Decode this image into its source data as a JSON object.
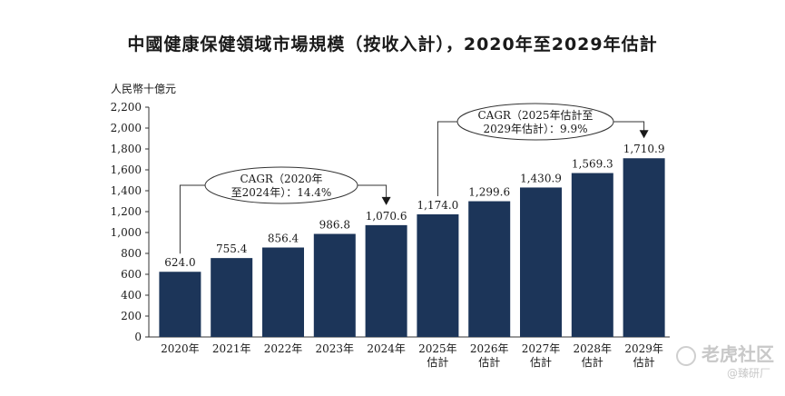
{
  "title": "中國健康保健領域市場規模（按收入計），2020年至2029年估計",
  "chart_data": {
    "type": "bar",
    "title": "中國健康保健領域市場規模（按收入計），2020年至2029年估計",
    "ylabel": "人民幣十億元",
    "xlabel": "",
    "ylim": [
      0,
      2200
    ],
    "yticks": [
      0,
      200,
      400,
      600,
      800,
      1000,
      1200,
      1400,
      1600,
      1800,
      2000,
      2200
    ],
    "ytick_labels": [
      "0",
      "200",
      "400",
      "600",
      "800",
      "1,000",
      "1,200",
      "1,400",
      "1,600",
      "1,800",
      "2,000",
      "2,200"
    ],
    "categories": [
      [
        "2020年"
      ],
      [
        "2021年"
      ],
      [
        "2022年"
      ],
      [
        "2023年"
      ],
      [
        "2024年"
      ],
      [
        "2025年",
        "估計"
      ],
      [
        "2026年",
        "估計"
      ],
      [
        "2027年",
        "估計"
      ],
      [
        "2028年",
        "估計"
      ],
      [
        "2029年",
        "估計"
      ]
    ],
    "values": [
      624.0,
      755.4,
      856.4,
      986.8,
      1070.6,
      1174.0,
      1299.6,
      1430.9,
      1569.3,
      1710.9
    ],
    "value_labels": [
      "624.0",
      "755.4",
      "856.4",
      "986.8",
      "1,070.6",
      "1,174.0",
      "1,299.6",
      "1,430.9",
      "1,569.3",
      "1,710.9"
    ],
    "bar_color": "#1c3559",
    "annotations": [
      {
        "lines": [
          "CAGR（2020年",
          "至2024年）：14.4%"
        ],
        "from_index": 0,
        "to_index": 4
      },
      {
        "lines": [
          "CAGR（2025年估計至",
          "2029年估計）：9.9%"
        ],
        "from_index": 5,
        "to_index": 9
      }
    ]
  },
  "watermark": {
    "main": "老虎社区",
    "sub": "@臻研厂"
  }
}
